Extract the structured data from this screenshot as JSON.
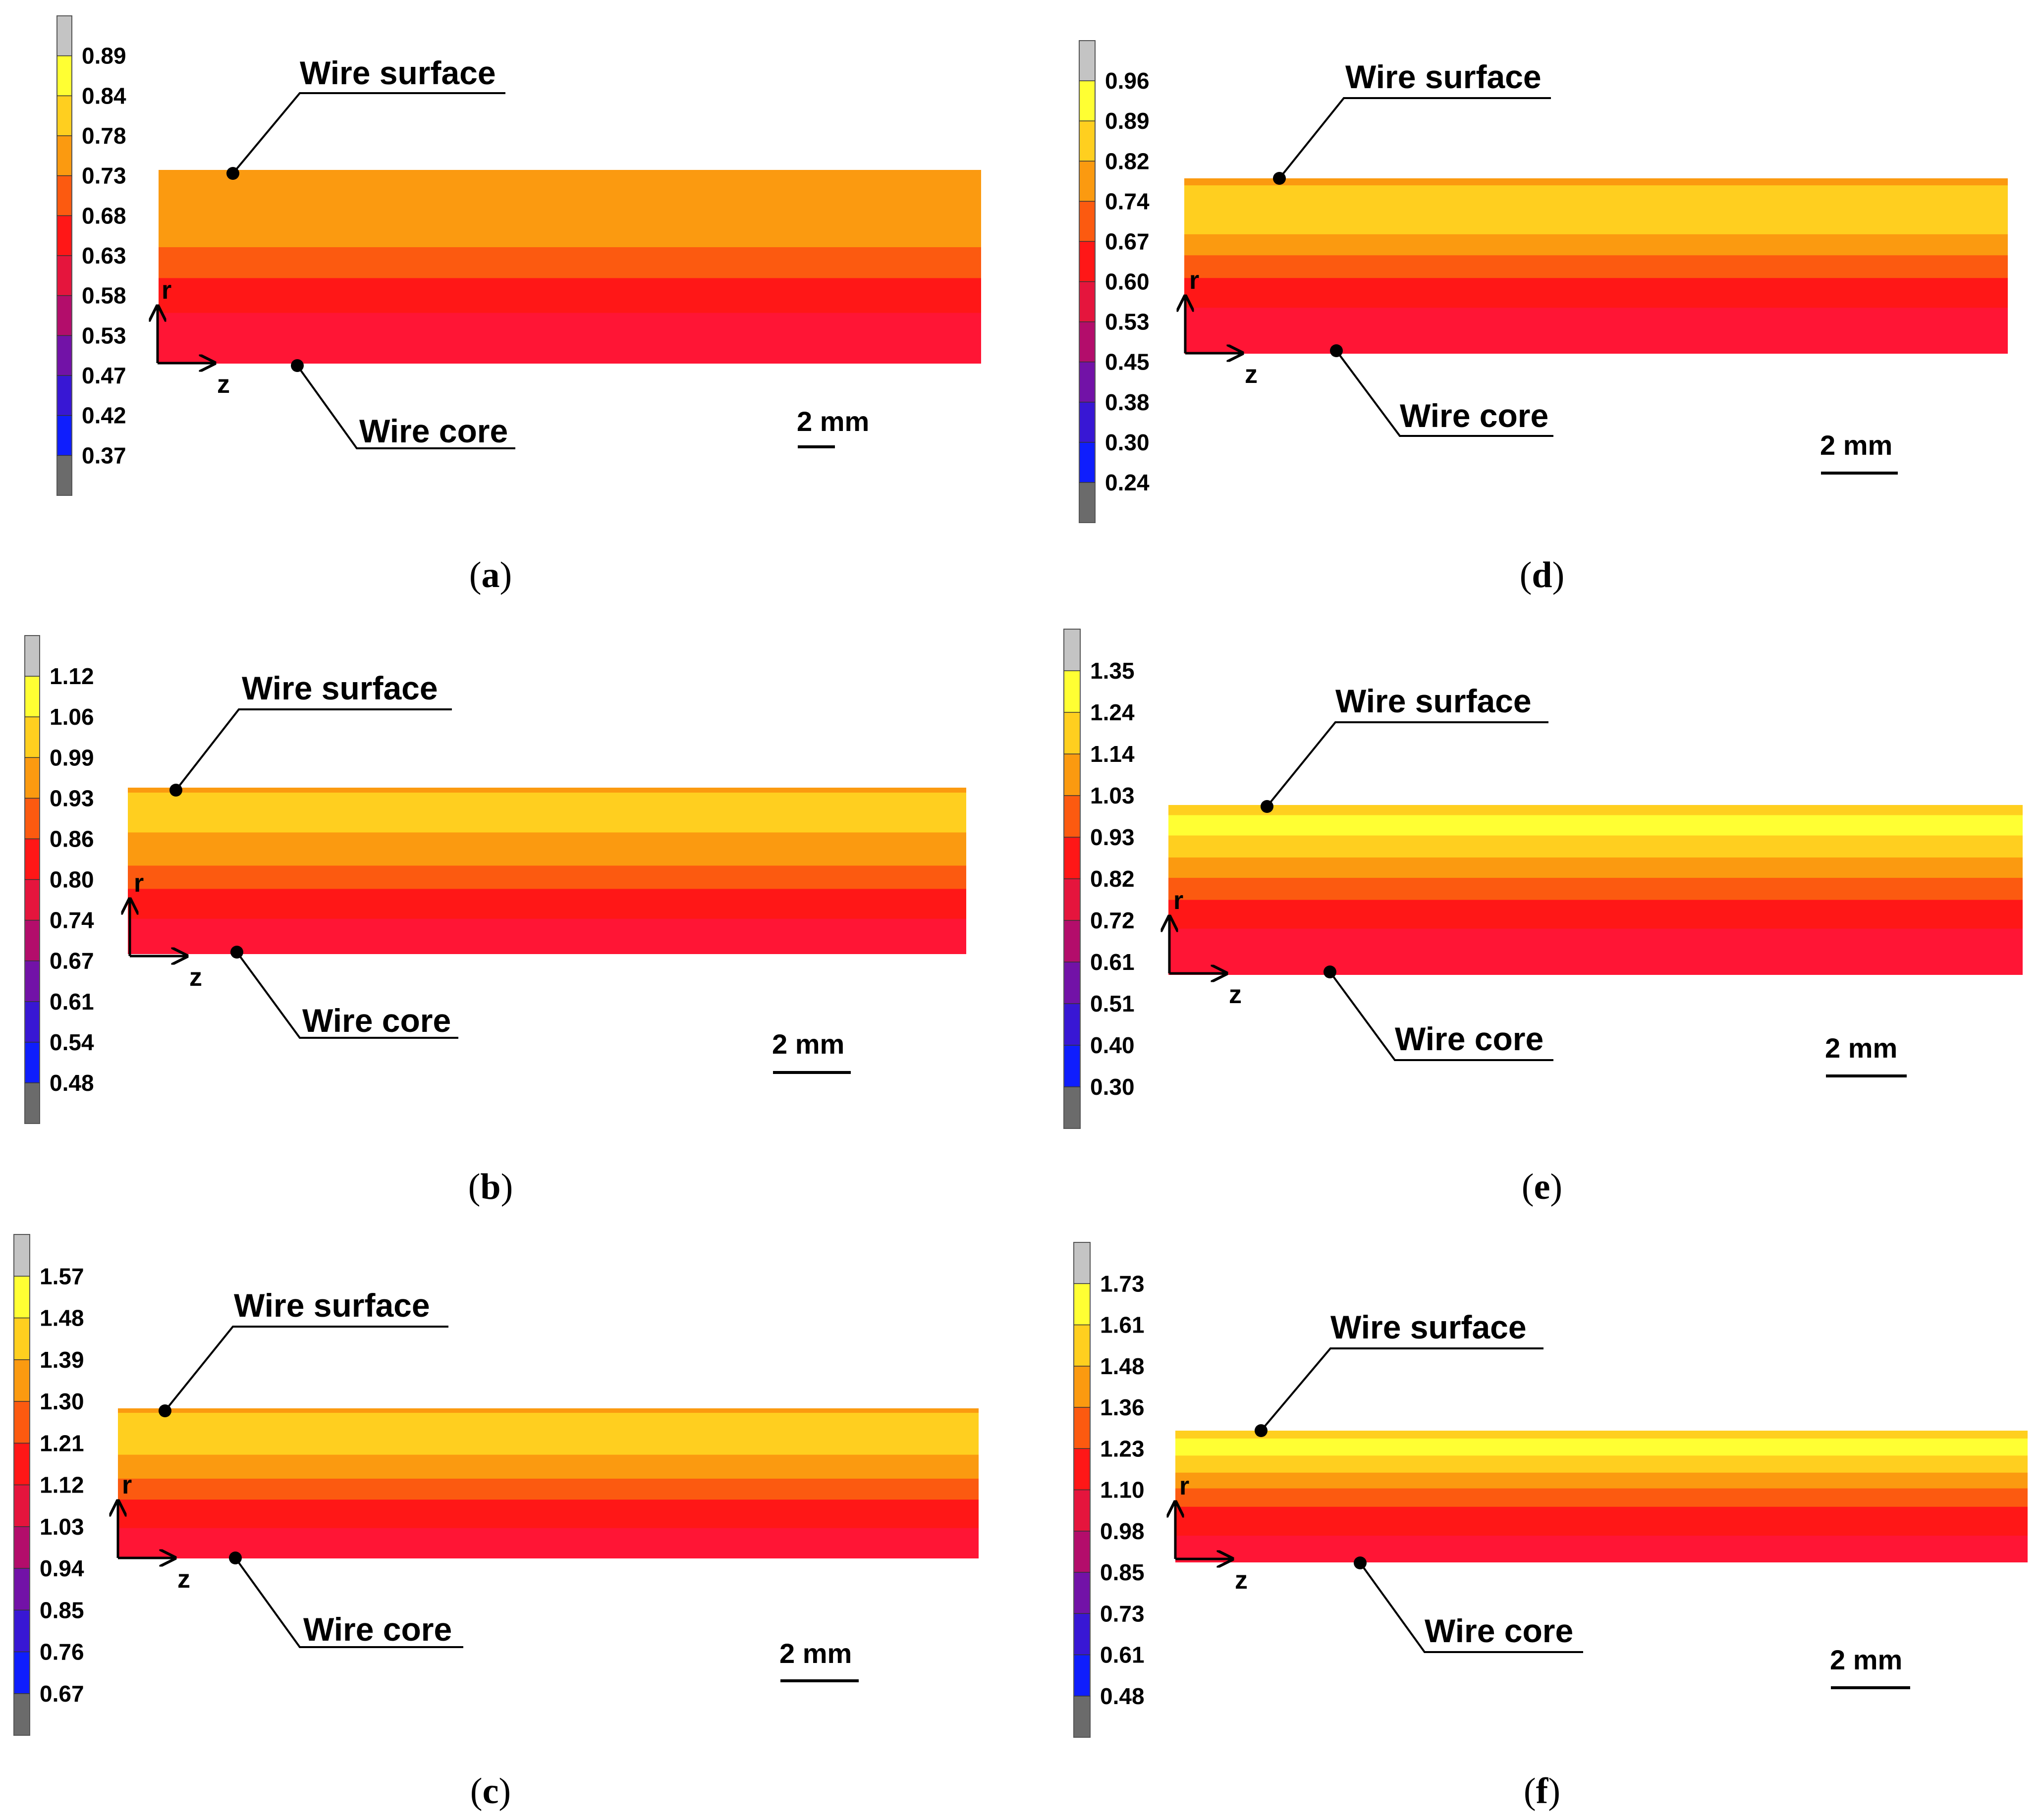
{
  "palette": {
    "top_gray": "#c4c4c4",
    "bottom_gray": "#6b6b6b",
    "bands": [
      "#ffff33",
      "#ffcf1f",
      "#fb9a10",
      "#fc5a10",
      "#ff1717",
      "#e5153d",
      "#b30d6b",
      "#7212a7",
      "#3817d4",
      "#0f1efd"
    ]
  },
  "annotations": {
    "surface": "Wire surface",
    "core": "Wire core",
    "axis_r": "r",
    "axis_z": "z",
    "scale": "2 mm"
  },
  "panels": [
    {
      "id": "a",
      "caption_open": "(",
      "caption_letter": "a",
      "caption_close": ")",
      "ticks": [
        "0.89",
        "0.84",
        "0.78",
        "0.73",
        "0.68",
        "0.63",
        "0.58",
        "0.53",
        "0.47",
        "0.42",
        "0.37"
      ],
      "layers": [
        {
          "frac": 0.4,
          "color": "#fb9a10"
        },
        {
          "frac": 0.16,
          "color": "#fc5a10"
        },
        {
          "frac": 0.18,
          "color": "#ff1717"
        },
        {
          "frac": 0.26,
          "color": "#ff1535"
        }
      ]
    },
    {
      "id": "b",
      "caption_open": "(",
      "caption_letter": "b",
      "caption_close": ")",
      "ticks": [
        "1.12",
        "1.06",
        "0.99",
        "0.93",
        "0.86",
        "0.80",
        "0.74",
        "0.67",
        "0.61",
        "0.54",
        "0.48"
      ],
      "layers": [
        {
          "frac": 0.03,
          "color": "#fb9a10"
        },
        {
          "frac": 0.24,
          "color": "#ffcf1f"
        },
        {
          "frac": 0.2,
          "color": "#fb9a10"
        },
        {
          "frac": 0.14,
          "color": "#fc5a10"
        },
        {
          "frac": 0.18,
          "color": "#ff1717"
        },
        {
          "frac": 0.21,
          "color": "#ff1535"
        }
      ]
    },
    {
      "id": "c",
      "caption_open": "(",
      "caption_letter": "c",
      "caption_close": ")",
      "ticks": [
        "1.57",
        "1.48",
        "1.39",
        "1.30",
        "1.21",
        "1.12",
        "1.03",
        "0.94",
        "0.85",
        "0.76",
        "0.67"
      ],
      "layers": [
        {
          "frac": 0.03,
          "color": "#fb9a10"
        },
        {
          "frac": 0.28,
          "color": "#ffcf1f"
        },
        {
          "frac": 0.16,
          "color": "#fb9a10"
        },
        {
          "frac": 0.14,
          "color": "#fc5a10"
        },
        {
          "frac": 0.19,
          "color": "#ff1717"
        },
        {
          "frac": 0.2,
          "color": "#ff1535"
        }
      ]
    },
    {
      "id": "d",
      "caption_open": "(",
      "caption_letter": "d",
      "caption_close": ")",
      "ticks": [
        "0.96",
        "0.89",
        "0.82",
        "0.74",
        "0.67",
        "0.60",
        "0.53",
        "0.45",
        "0.38",
        "0.30",
        "0.24"
      ],
      "layers": [
        {
          "frac": 0.04,
          "color": "#fb9a10"
        },
        {
          "frac": 0.28,
          "color": "#ffcf1f"
        },
        {
          "frac": 0.12,
          "color": "#fb9a10"
        },
        {
          "frac": 0.13,
          "color": "#fc5a10"
        },
        {
          "frac": 0.17,
          "color": "#ff1717"
        },
        {
          "frac": 0.26,
          "color": "#ff1535"
        }
      ]
    },
    {
      "id": "e",
      "caption_open": "(",
      "caption_letter": "e",
      "caption_close": ")",
      "ticks": [
        "1.35",
        "1.24",
        "1.14",
        "1.03",
        "0.93",
        "0.82",
        "0.72",
        "0.61",
        "0.51",
        "0.40",
        "0.30"
      ],
      "layers": [
        {
          "frac": 0.06,
          "color": "#ffcf1f"
        },
        {
          "frac": 0.12,
          "color": "#ffff33"
        },
        {
          "frac": 0.13,
          "color": "#ffcf1f"
        },
        {
          "frac": 0.12,
          "color": "#fb9a10"
        },
        {
          "frac": 0.13,
          "color": "#fc5a10"
        },
        {
          "frac": 0.17,
          "color": "#ff1717"
        },
        {
          "frac": 0.27,
          "color": "#ff1535"
        }
      ]
    },
    {
      "id": "f",
      "caption_open": "(",
      "caption_letter": "f",
      "caption_close": ")",
      "ticks": [
        "1.73",
        "1.61",
        "1.48",
        "1.36",
        "1.23",
        "1.10",
        "0.98",
        "0.85",
        "0.73",
        "0.61",
        "0.48"
      ],
      "layers": [
        {
          "frac": 0.06,
          "color": "#ffcf1f"
        },
        {
          "frac": 0.13,
          "color": "#ffff33"
        },
        {
          "frac": 0.13,
          "color": "#ffcf1f"
        },
        {
          "frac": 0.12,
          "color": "#fb9a10"
        },
        {
          "frac": 0.14,
          "color": "#fc5a10"
        },
        {
          "frac": 0.22,
          "color": "#ff1717"
        },
        {
          "frac": 0.2,
          "color": "#ff1535"
        }
      ]
    }
  ]
}
